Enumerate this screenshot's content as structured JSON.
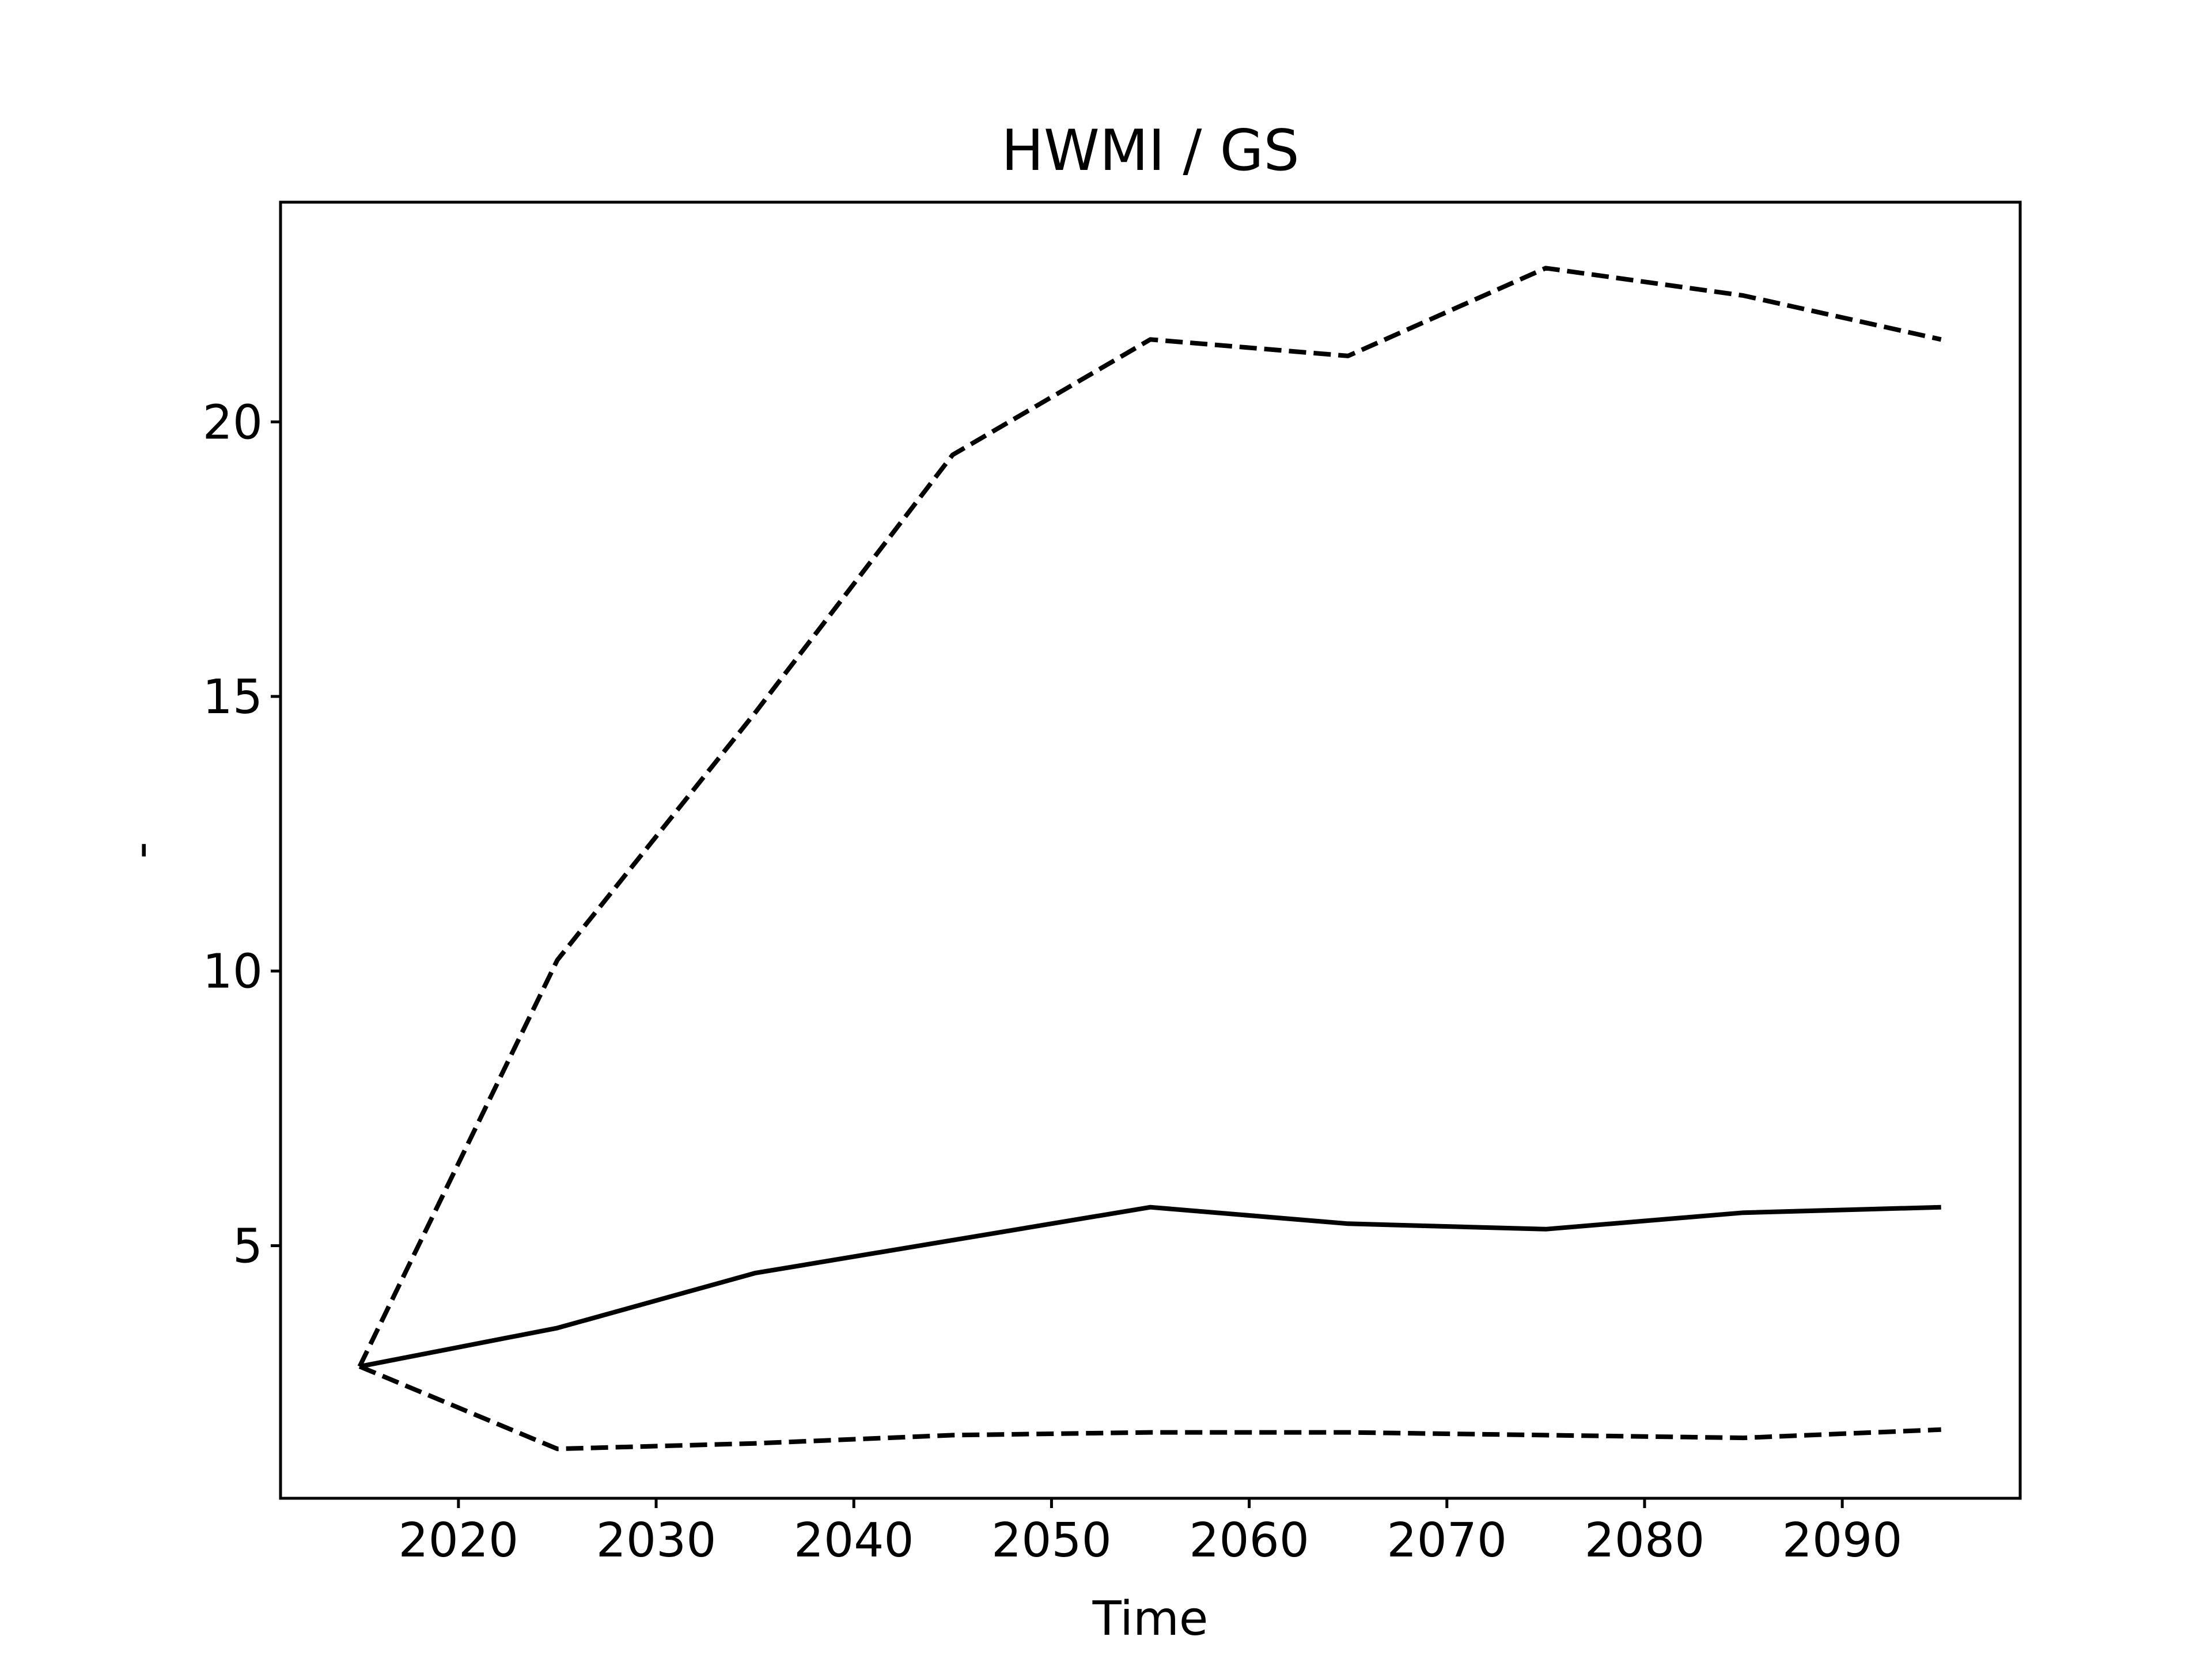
{
  "chart_data": {
    "type": "line",
    "title": "HWMI / GS",
    "xlabel": "Time",
    "ylabel": "-",
    "x": [
      2015,
      2025,
      2035,
      2045,
      2055,
      2065,
      2075,
      2085,
      2095
    ],
    "xlim": [
      2011,
      2099
    ],
    "ylim": [
      0.4,
      24.0
    ],
    "xticks": [
      2020,
      2030,
      2040,
      2050,
      2060,
      2070,
      2080,
      2090
    ],
    "yticks": [
      5,
      10,
      15,
      20
    ],
    "grid": false,
    "legend": "none",
    "series": [
      {
        "style": "dashed",
        "color": "#000000",
        "values": [
          2.8,
          10.2,
          14.7,
          19.4,
          21.5,
          21.2,
          22.8,
          22.3,
          21.5
        ]
      },
      {
        "style": "solid",
        "color": "#000000",
        "values": [
          2.8,
          3.5,
          4.5,
          5.1,
          5.7,
          5.4,
          5.3,
          5.6,
          5.7
        ]
      },
      {
        "style": "dashed",
        "color": "#000000",
        "values": [
          2.8,
          1.3,
          1.4,
          1.55,
          1.6,
          1.6,
          1.55,
          1.5,
          1.65
        ]
      }
    ]
  }
}
